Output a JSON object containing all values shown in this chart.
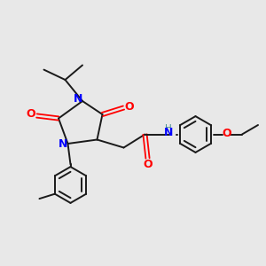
{
  "bg_color": "#e8e8e8",
  "bond_color": "#1a1a1a",
  "N_color": "#0000ff",
  "O_color": "#ff0000",
  "H_color": "#4a9090",
  "figsize": [
    3.0,
    3.0
  ],
  "dpi": 100,
  "xlim": [
    0,
    10
  ],
  "ylim": [
    0,
    10
  ]
}
